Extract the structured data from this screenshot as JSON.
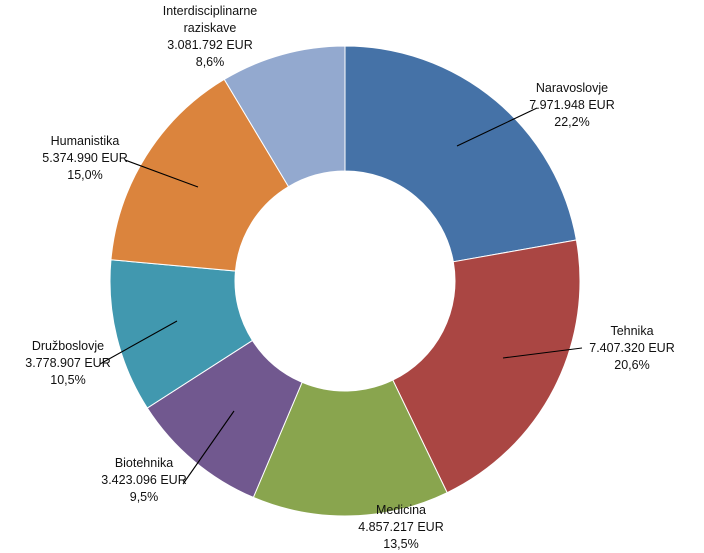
{
  "chart_data": {
    "type": "pie",
    "variant": "doughnut",
    "title": "",
    "start_angle_deg": 0,
    "direction": "clockwise",
    "slices": [
      {
        "name": "Naravoslovje",
        "value": 7971948,
        "value_label": "7.971.948 EUR",
        "percent_label": "22,2%",
        "color": "#4572A7"
      },
      {
        "name": "Tehnika",
        "value": 7407320,
        "value_label": "7.407.320 EUR",
        "percent_label": "20,6%",
        "color": "#AA4643"
      },
      {
        "name": "Medicina",
        "value": 4857217,
        "value_label": "4.857.217 EUR",
        "percent_label": "13,5%",
        "color": "#89A54E"
      },
      {
        "name": "Biotehnika",
        "value": 3423096,
        "value_label": "3.423.096 EUR",
        "percent_label": "9,5%",
        "color": "#71588F"
      },
      {
        "name": "Družboslovje",
        "value": 3778907,
        "value_label": "3.778.907 EUR",
        "percent_label": "10,5%",
        "color": "#4198AF"
      },
      {
        "name": "Humanistika",
        "value": 5374990,
        "value_label": "5.374.990 EUR",
        "percent_label": "15,0%",
        "color": "#DB843D"
      },
      {
        "name_lines": [
          "Interdisciplinarne",
          "raziskave"
        ],
        "value": 3081792,
        "value_label": "3.081.792 EUR",
        "percent_label": "8,6%",
        "color": "#93A9CF"
      }
    ]
  }
}
